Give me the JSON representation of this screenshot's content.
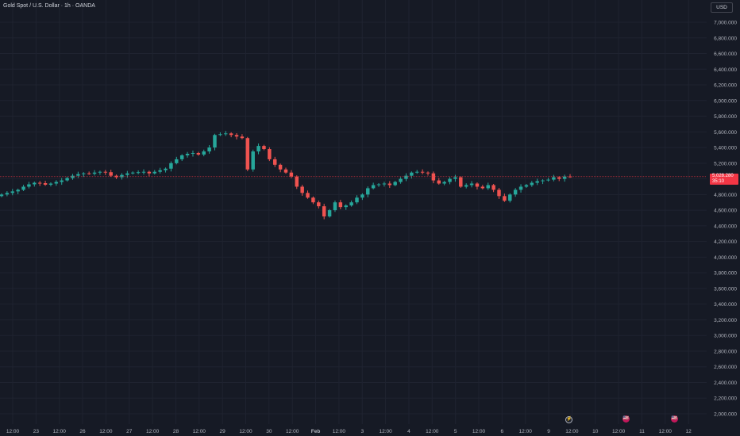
{
  "header": {
    "symbol_title": "Gold Spot / U.S. Dollar · 1h · OANDA",
    "currency": "USD"
  },
  "price_tag": {
    "price": "5,028.280",
    "countdown": "35:10"
  },
  "events": [
    {
      "icon": "lightning-icon",
      "glyph": "⚡"
    },
    {
      "icon": "us-flag-icon",
      "glyph": "🇺🇸"
    },
    {
      "icon": "us-flag-icon",
      "glyph": "🇺🇸"
    }
  ],
  "colors": {
    "background": "#161a25",
    "grid": "#1f2330",
    "up": "#26a69a",
    "down": "#ef5350",
    "price_line": "#f23645",
    "axis_text": "#b2b5be"
  },
  "chart_data": {
    "type": "candlestick",
    "title": "Gold Spot / U.S. Dollar · 1h · OANDA",
    "ylim": [
      1900000,
      7150000
    ],
    "y_ticks": [
      2000000,
      2200000,
      2400000,
      2600000,
      2800000,
      3000000,
      3200000,
      3400000,
      3600000,
      3800000,
      4000000,
      4200000,
      4400000,
      4600000,
      4800000,
      5000000,
      5200000,
      5400000,
      5600000,
      5800000,
      6000000,
      6200000,
      6400000,
      6600000,
      6800000,
      7000000
    ],
    "y_tick_labels": [
      "2,000.000",
      "2,200.000",
      "2,400.000",
      "2,600.000",
      "2,800.000",
      "3,000.000",
      "3,200.000",
      "3,400.000",
      "3,600.000",
      "3,800.000",
      "4,000.000",
      "4,200.000",
      "4,400.000",
      "4,600.000",
      "4,800.000",
      "5,000.000",
      "5,200.000",
      "5,400.000",
      "5,600.000",
      "5,800.000",
      "6,000.000",
      "6,200.000",
      "6,400.000",
      "6,600.000",
      "6,800.000",
      "7,000.000"
    ],
    "x_labels": [
      "12:00",
      "23",
      "12:00",
      "26",
      "12:00",
      "27",
      "12:00",
      "28",
      "12:00",
      "29",
      "12:00",
      "30",
      "12:00",
      "Feb",
      "12:00",
      "3",
      "12:00",
      "4",
      "12:00",
      "5",
      "12:00",
      "6",
      "12:00",
      "9",
      "12:00",
      "10",
      "12:00",
      "11",
      "12:00",
      "12"
    ],
    "x_label_bold": [
      false,
      false,
      false,
      false,
      false,
      false,
      false,
      false,
      false,
      false,
      false,
      false,
      false,
      true,
      false,
      false,
      false,
      false,
      false,
      false,
      false,
      false,
      false,
      false,
      false,
      false,
      false,
      false,
      false,
      false
    ],
    "last_price": 5028280,
    "grid": true,
    "closes": [
      4800000,
      4820000,
      4840000,
      4860000,
      4900000,
      4930000,
      4950000,
      4945000,
      4925000,
      4940000,
      4960000,
      4980000,
      5010000,
      5040000,
      5060000,
      5070000,
      5065000,
      5080000,
      5090000,
      5085000,
      5040000,
      5020000,
      5050000,
      5070000,
      5080000,
      5085000,
      5090000,
      5070000,
      5090000,
      5110000,
      5130000,
      5200000,
      5250000,
      5300000,
      5320000,
      5330000,
      5310000,
      5350000,
      5400000,
      5560000,
      5570000,
      5580000,
      5560000,
      5540000,
      5520000,
      5120000,
      5350000,
      5420000,
      5380000,
      5250000,
      5180000,
      5120000,
      5080000,
      5030000,
      4900000,
      4820000,
      4760000,
      4700000,
      4650000,
      4520000,
      4600000,
      4700000,
      4640000,
      4660000,
      4700000,
      4760000,
      4800000,
      4880000,
      4920000,
      4930000,
      4940000,
      4920000,
      4960000,
      5000000,
      5040000,
      5080000,
      5090000,
      5080000,
      5070000,
      4980000,
      4940000,
      4960000,
      5000000,
      5020000,
      4900000,
      4920000,
      4940000,
      4900000,
      4880000,
      4920000,
      4860000,
      4780000,
      4720000,
      4800000,
      4860000,
      4900000,
      4920000,
      4950000,
      4970000,
      4980000,
      4990000,
      5020000,
      5000000,
      5030000,
      5028280
    ]
  }
}
